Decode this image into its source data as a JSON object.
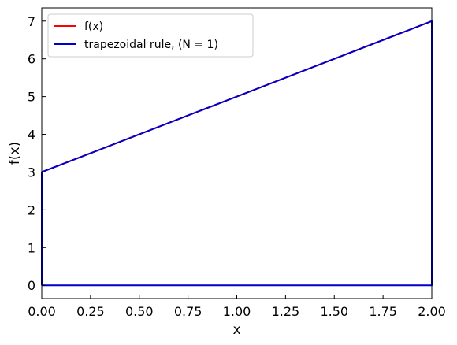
{
  "chart_data": {
    "type": "line",
    "xlabel": "x",
    "ylabel": "f(x)",
    "xlim": [
      0.0,
      2.0
    ],
    "ylim": [
      -0.35,
      7.35
    ],
    "x_ticks": [
      "0.00",
      "0.25",
      "0.50",
      "0.75",
      "1.00",
      "1.25",
      "1.50",
      "1.75",
      "2.00"
    ],
    "y_ticks": [
      "0",
      "1",
      "2",
      "3",
      "4",
      "5",
      "6",
      "7"
    ],
    "grid": false,
    "legend_position": "top-left",
    "series": [
      {
        "name": "f(x)",
        "color": "#ff0000",
        "x": [
          0.0,
          2.0
        ],
        "y": [
          3.0,
          7.0
        ]
      },
      {
        "name": "trapezoidal rule, (N = 1)",
        "color": "#0000cc",
        "x": [
          0.0,
          0.0,
          2.0,
          2.0,
          0.0
        ],
        "y": [
          0.0,
          3.0,
          7.0,
          0.0,
          0.0
        ]
      }
    ]
  }
}
